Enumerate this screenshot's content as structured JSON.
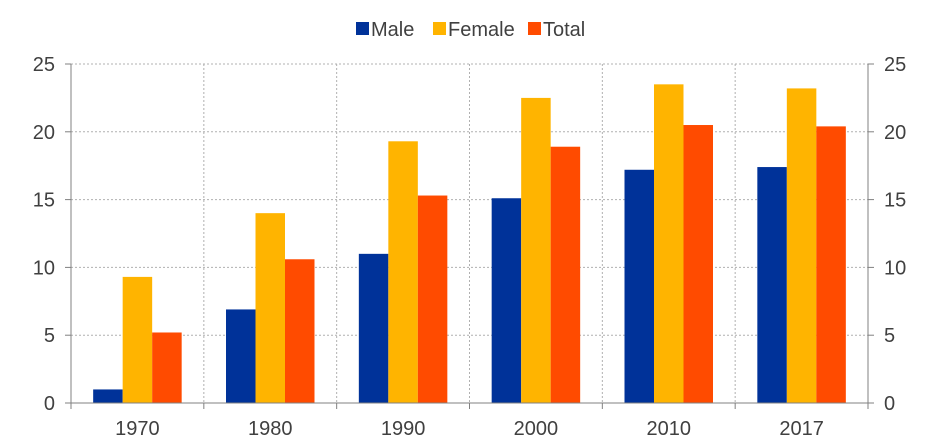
{
  "chart_data": {
    "type": "bar",
    "categories": [
      "1970",
      "1980",
      "1990",
      "2000",
      "2010",
      "2017"
    ],
    "series": [
      {
        "name": "Male",
        "color": "#003299",
        "values": [
          1.0,
          6.9,
          11.0,
          15.1,
          17.2,
          17.4
        ]
      },
      {
        "name": "Female",
        "color": "#FFB400",
        "values": [
          9.3,
          14.0,
          19.3,
          22.5,
          23.5,
          23.2
        ]
      },
      {
        "name": "Total",
        "color": "#FF4B00",
        "values": [
          5.2,
          10.6,
          15.3,
          18.9,
          20.5,
          20.4
        ]
      }
    ],
    "ylim": [
      0,
      25
    ],
    "yticks": [
      "0",
      "5",
      "10",
      "15",
      "20",
      "25"
    ],
    "y_axis_right": true,
    "grid": true,
    "legend_position": "top-center"
  }
}
